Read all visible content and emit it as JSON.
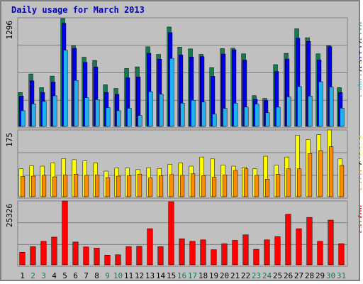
{
  "chart_data": {
    "type": "bar",
    "title": "Daily usage for March 2013",
    "days": [
      "1",
      "2",
      "3",
      "4",
      "5",
      "6",
      "7",
      "8",
      "9",
      "10",
      "11",
      "12",
      "13",
      "14",
      "15",
      "16",
      "17",
      "18",
      "19",
      "20",
      "21",
      "22",
      "23",
      "24",
      "25",
      "26",
      "27",
      "28",
      "29",
      "30",
      "31"
    ],
    "weekend_days": [
      "2",
      "3",
      "9",
      "10",
      "16",
      "17",
      "23",
      "24",
      "30",
      "31"
    ],
    "panels": [
      {
        "name": "top",
        "ymax_label": "1296",
        "ymax": 1296,
        "right_labels": [
          "Pages",
          "/",
          "Files",
          "/",
          "Hits"
        ],
        "series": [
          {
            "name": "Hits",
            "color": "#157a4e",
            "values": [
              407,
              630,
              466,
              604,
              1296,
              968,
              831,
              792,
              500,
              456,
              695,
              715,
              956,
              865,
              1194,
              952,
              931,
              866,
              706,
              934,
              939,
              872,
              369,
              336,
              742,
              877,
              1172,
              1065,
              872,
              970,
              465
            ]
          },
          {
            "name": "Files",
            "color": "#0000e6",
            "values": [
              365,
              547,
              408,
              534,
              1238,
              938,
              769,
              713,
              408,
              385,
              584,
              595,
              878,
              808,
              1126,
              857,
              834,
              839,
              602,
              869,
              920,
              796,
              328,
              310,
              660,
              809,
              1059,
              1021,
              799,
              958,
              407
            ]
          },
          {
            "name": "Pages",
            "color": "#20b2f0",
            "values": [
              188,
              271,
              301,
              367,
              916,
              552,
              344,
              321,
              225,
              188,
              218,
              132,
              417,
              387,
              817,
              279,
              314,
              293,
              147,
              217,
              279,
              232,
              268,
              165,
              231,
              355,
              478,
              364,
              536,
              473,
              219
            ]
          }
        ]
      },
      {
        "name": "middle",
        "ymax_label": "175",
        "ymax": 175,
        "right_labels": [
          "Sites",
          "/",
          "Visits"
        ],
        "series": [
          {
            "name": "Visits",
            "color": "#ffff00",
            "values": [
              73,
              81,
              80,
              89,
              100,
              97,
              94,
              88,
              67,
              75,
              75,
              71,
              76,
              74,
              85,
              88,
              80,
              104,
              99,
              83,
              80,
              77,
              73,
              106,
              83,
              104,
              161,
              150,
              163,
              175,
              99
            ]
          },
          {
            "name": "Sites",
            "color": "#ff8c00",
            "values": [
              53,
              54,
              56,
              52,
              57,
              59,
              56,
              57,
              50,
              54,
              55,
              59,
              49,
              55,
              58,
              56,
              60,
              55,
              51,
              57,
              69,
              73,
              56,
              46,
              59,
              73,
              73,
              113,
              121,
              131,
              82
            ]
          }
        ]
      },
      {
        "name": "bottom",
        "ymax_label": "25326",
        "ymax": 25326,
        "right_labels": [
          "KBytes"
        ],
        "series": [
          {
            "name": "KBytes",
            "color": "#ff0000",
            "values": [
              5010,
              7190,
              9320,
              10990,
              25326,
              9050,
              7090,
              6660,
              3860,
              4010,
              7190,
              7340,
              14330,
              7190,
              25026,
              10350,
              9320,
              9900,
              6000,
              8360,
              9720,
              11900,
              6170,
              9900,
              11220,
              20060,
              14330,
              18810,
              9320,
              17730,
              8390
            ]
          }
        ]
      }
    ],
    "colors": {
      "title": "#0000cc",
      "weekday_label": "#000000",
      "weekend_label": "#157a4e",
      "grid": "#808080",
      "plot_bg": "#c0c0c0"
    }
  }
}
